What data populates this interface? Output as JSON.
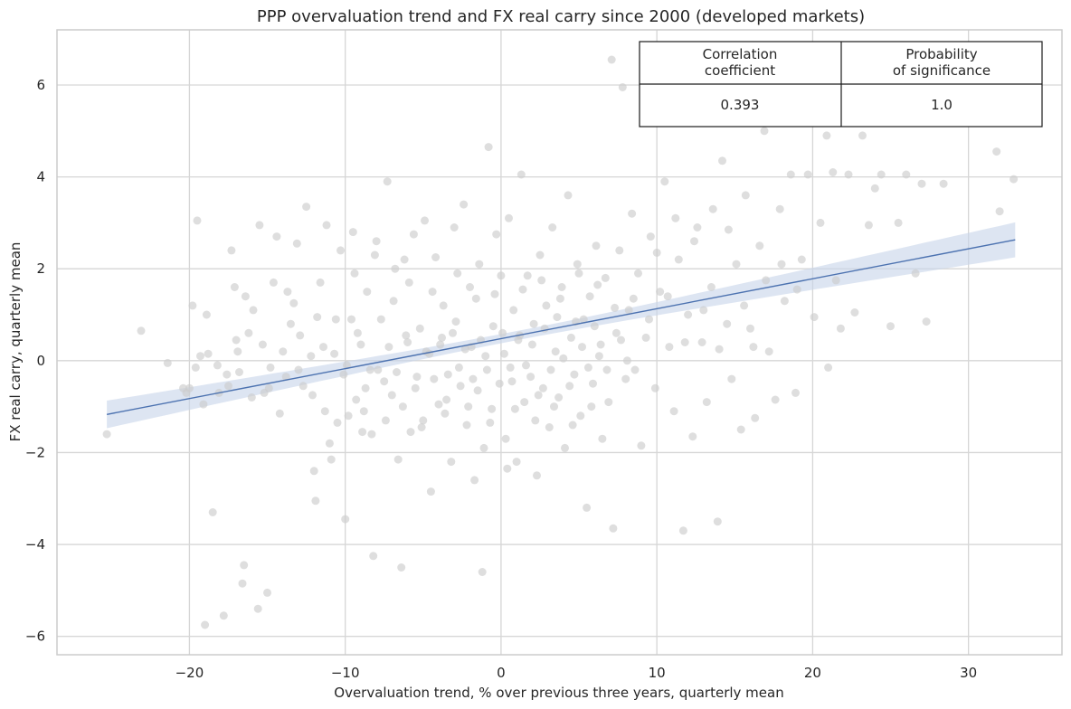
{
  "chart_data": {
    "type": "scatter",
    "title": "PPP overvaluation trend and FX real carry since 2000 (developed markets)",
    "xlabel": "Overvaluation trend, % over previous three years, quarterly mean",
    "ylabel": "FX real carry, quarterly mean",
    "xlim": [
      -28.5,
      36
    ],
    "ylim": [
      -6.4,
      7.2
    ],
    "xticks": [
      -20,
      -10,
      0,
      10,
      20,
      30
    ],
    "yticks": [
      -6,
      -4,
      -2,
      0,
      2,
      4,
      6
    ],
    "xtick_labels": [
      "−20",
      "−10",
      "0",
      "10",
      "20",
      "30"
    ],
    "ytick_labels": [
      "−6",
      "−4",
      "−2",
      "0",
      "2",
      "4",
      "6"
    ],
    "grid": true,
    "colors": {
      "points": "#cccccc",
      "line": "#4c72b0",
      "band": "#c6d3ea",
      "grid": "#d6d6d6",
      "frame": "#cccccc"
    },
    "regression": {
      "x": [
        -25.3,
        33.0
      ],
      "y": [
        -1.17,
        2.63
      ],
      "ci_halfwidth_ends": [
        0.3,
        0.38
      ],
      "ci_halfwidth_center": 0.1,
      "center_x": 1.0
    },
    "points": [
      [
        -25.3,
        -1.6
      ],
      [
        -23.1,
        0.65
      ],
      [
        -21.4,
        -0.05
      ],
      [
        -20.2,
        -0.7
      ],
      [
        -20.0,
        -0.6
      ],
      [
        -19.8,
        1.2
      ],
      [
        -19.5,
        3.05
      ],
      [
        -19.3,
        0.1
      ],
      [
        -19.1,
        -0.95
      ],
      [
        -19.0,
        -5.75
      ],
      [
        -18.8,
        0.15
      ],
      [
        -18.5,
        -3.3
      ],
      [
        -18.2,
        -0.1
      ],
      [
        -17.8,
        -5.55
      ],
      [
        -17.5,
        -0.55
      ],
      [
        -17.3,
        2.4
      ],
      [
        -17.1,
        1.6
      ],
      [
        -16.8,
        -0.25
      ],
      [
        -16.5,
        -4.45
      ],
      [
        -16.6,
        -4.85
      ],
      [
        -16.2,
        0.6
      ],
      [
        -16.0,
        -0.8
      ],
      [
        -15.6,
        -5.4
      ],
      [
        -15.5,
        2.95
      ],
      [
        -15.2,
        -0.7
      ],
      [
        -15.0,
        -5.05
      ],
      [
        -14.8,
        -0.15
      ],
      [
        -14.6,
        1.7
      ],
      [
        -14.4,
        2.7
      ],
      [
        -14.2,
        -1.15
      ],
      [
        -14.0,
        0.2
      ],
      [
        -13.7,
        1.5
      ],
      [
        -13.5,
        0.8
      ],
      [
        -13.1,
        2.55
      ],
      [
        -13.0,
        -0.2
      ],
      [
        -12.7,
        -0.55
      ],
      [
        -12.5,
        3.35
      ],
      [
        -12.2,
        0.1
      ],
      [
        -12.0,
        -2.4
      ],
      [
        -11.9,
        -3.05
      ],
      [
        -11.6,
        1.7
      ],
      [
        -11.3,
        -1.1
      ],
      [
        -11.2,
        2.95
      ],
      [
        -11.0,
        -1.8
      ],
      [
        -10.9,
        -2.15
      ],
      [
        -10.7,
        0.15
      ],
      [
        -10.5,
        -1.35
      ],
      [
        -10.3,
        2.4
      ],
      [
        -10.1,
        -0.3
      ],
      [
        -10.0,
        -3.45
      ],
      [
        -9.8,
        -1.2
      ],
      [
        -9.6,
        0.9
      ],
      [
        -9.5,
        2.8
      ],
      [
        -9.3,
        -0.85
      ],
      [
        -9.0,
        0.35
      ],
      [
        -8.8,
        -1.1
      ],
      [
        -8.6,
        1.5
      ],
      [
        -8.4,
        -0.2
      ],
      [
        -8.3,
        -1.6
      ],
      [
        -8.2,
        -4.25
      ],
      [
        -8.0,
        2.6
      ],
      [
        -7.7,
        0.9
      ],
      [
        -7.5,
        -0.45
      ],
      [
        -7.3,
        3.9
      ],
      [
        -7.0,
        -0.75
      ],
      [
        -6.9,
        1.3
      ],
      [
        -6.6,
        -2.15
      ],
      [
        -6.4,
        -4.5
      ],
      [
        -6.2,
        2.2
      ],
      [
        -6.0,
        0.4
      ],
      [
        -5.8,
        -1.55
      ],
      [
        -5.6,
        2.75
      ],
      [
        -5.4,
        -0.35
      ],
      [
        -5.2,
        0.7
      ],
      [
        -5.0,
        -1.3
      ],
      [
        -4.9,
        3.05
      ],
      [
        -4.6,
        0.15
      ],
      [
        -4.5,
        -2.85
      ],
      [
        -4.2,
        2.25
      ],
      [
        -4.0,
        -0.95
      ],
      [
        -3.8,
        0.5
      ],
      [
        -3.7,
        1.2
      ],
      [
        -3.4,
        -0.3
      ],
      [
        -3.2,
        -2.2
      ],
      [
        -3.0,
        2.9
      ],
      [
        -2.9,
        0.85
      ],
      [
        -2.6,
        -0.55
      ],
      [
        -2.4,
        3.4
      ],
      [
        -2.2,
        -1.4
      ],
      [
        -2.0,
        1.6
      ],
      [
        -1.9,
        0.3
      ],
      [
        -1.7,
        -2.6
      ],
      [
        -1.5,
        -0.65
      ],
      [
        -1.4,
        2.1
      ],
      [
        -1.2,
        -4.6
      ],
      [
        -1.0,
        0.1
      ],
      [
        -0.8,
        4.65
      ],
      [
        -0.6,
        -1.05
      ],
      [
        -0.4,
        1.45
      ],
      [
        -0.3,
        2.75
      ],
      [
        -0.1,
        -0.5
      ],
      [
        0.1,
        0.6
      ],
      [
        0.3,
        -1.7
      ],
      [
        0.5,
        3.1
      ],
      [
        0.6,
        -0.15
      ],
      [
        0.8,
        1.1
      ],
      [
        1.0,
        -2.2
      ],
      [
        1.1,
        0.45
      ],
      [
        1.3,
        4.05
      ],
      [
        1.5,
        -0.9
      ],
      [
        1.7,
        1.85
      ],
      [
        1.9,
        -0.35
      ],
      [
        2.1,
        0.8
      ],
      [
        2.3,
        -2.5
      ],
      [
        2.5,
        2.3
      ],
      [
        2.7,
        -0.6
      ],
      [
        2.9,
        1.2
      ],
      [
        3.1,
        -1.45
      ],
      [
        3.3,
        2.9
      ],
      [
        3.5,
        0.2
      ],
      [
        3.7,
        -0.8
      ],
      [
        3.9,
        1.6
      ],
      [
        4.1,
        -1.9
      ],
      [
        4.3,
        3.6
      ],
      [
        4.5,
        0.5
      ],
      [
        4.7,
        -0.3
      ],
      [
        4.9,
        2.1
      ],
      [
        5.1,
        -1.2
      ],
      [
        5.3,
        0.9
      ],
      [
        5.5,
        -3.2
      ],
      [
        5.7,
        1.4
      ],
      [
        5.9,
        -0.5
      ],
      [
        6.1,
        2.5
      ],
      [
        6.3,
        0.1
      ],
      [
        6.5,
        -1.7
      ],
      [
        6.7,
        1.8
      ],
      [
        6.9,
        -0.9
      ],
      [
        7.1,
        6.55
      ],
      [
        7.2,
        -3.65
      ],
      [
        7.4,
        0.6
      ],
      [
        7.6,
        2.4
      ],
      [
        7.8,
        5.95
      ],
      [
        8.0,
        -0.4
      ],
      [
        8.2,
        1.1
      ],
      [
        8.4,
        3.2
      ],
      [
        8.6,
        -0.2
      ],
      [
        8.8,
        1.9
      ],
      [
        9.0,
        -1.85
      ],
      [
        9.3,
        0.5
      ],
      [
        9.6,
        2.7
      ],
      [
        9.9,
        -0.6
      ],
      [
        10.2,
        1.5
      ],
      [
        10.5,
        3.9
      ],
      [
        10.8,
        0.3
      ],
      [
        11.1,
        -1.1
      ],
      [
        11.4,
        2.2
      ],
      [
        11.7,
        -3.7
      ],
      [
        12.0,
        1.0
      ],
      [
        12.3,
        -1.65
      ],
      [
        12.6,
        2.9
      ],
      [
        12.9,
        0.4
      ],
      [
        13.2,
        -0.9
      ],
      [
        13.5,
        1.6
      ],
      [
        13.9,
        -3.5
      ],
      [
        14.2,
        4.35
      ],
      [
        14.5,
        0.8
      ],
      [
        14.8,
        -0.4
      ],
      [
        15.1,
        2.1
      ],
      [
        15.4,
        -1.5
      ],
      [
        15.7,
        3.6
      ],
      [
        16.0,
        0.7
      ],
      [
        16.3,
        -1.25
      ],
      [
        16.6,
        2.5
      ],
      [
        16.9,
        5.0
      ],
      [
        17.2,
        0.2
      ],
      [
        17.6,
        -0.85
      ],
      [
        17.9,
        3.3
      ],
      [
        18.2,
        1.3
      ],
      [
        18.6,
        4.05
      ],
      [
        18.9,
        -0.7
      ],
      [
        19.3,
        2.2
      ],
      [
        19.7,
        4.05
      ],
      [
        20.1,
        0.95
      ],
      [
        20.5,
        3.0
      ],
      [
        20.9,
        4.9
      ],
      [
        21.0,
        -0.15
      ],
      [
        21.3,
        4.1
      ],
      [
        21.5,
        1.75
      ],
      [
        21.8,
        0.7
      ],
      [
        22.3,
        4.05
      ],
      [
        22.7,
        1.05
      ],
      [
        23.2,
        4.9
      ],
      [
        23.6,
        2.95
      ],
      [
        24.0,
        3.75
      ],
      [
        24.4,
        4.05
      ],
      [
        25.0,
        0.75
      ],
      [
        25.5,
        3.0
      ],
      [
        26.0,
        4.05
      ],
      [
        26.6,
        1.9
      ],
      [
        27.0,
        3.85
      ],
      [
        27.3,
        0.85
      ],
      [
        28.4,
        3.85
      ],
      [
        31.8,
        4.55
      ],
      [
        32.0,
        3.25
      ],
      [
        32.9,
        3.95
      ],
      [
        -18.9,
        1.0
      ],
      [
        -17.6,
        -0.3
      ],
      [
        -16.9,
        0.2
      ],
      [
        -15.9,
        1.1
      ],
      [
        -14.9,
        -0.6
      ],
      [
        -13.8,
        -0.35
      ],
      [
        -12.9,
        0.55
      ],
      [
        -12.1,
        -0.75
      ],
      [
        -11.4,
        0.3
      ],
      [
        -10.6,
        0.9
      ],
      [
        -9.9,
        -0.1
      ],
      [
        -9.2,
        0.6
      ],
      [
        -8.7,
        -0.6
      ],
      [
        -7.9,
        -0.2
      ],
      [
        -7.2,
        0.3
      ],
      [
        -6.7,
        -0.25
      ],
      [
        -6.1,
        0.55
      ],
      [
        -5.5,
        -0.6
      ],
      [
        -4.8,
        0.2
      ],
      [
        -4.3,
        -0.4
      ],
      [
        -3.9,
        0.35
      ],
      [
        -3.5,
        -0.85
      ],
      [
        -3.1,
        0.6
      ],
      [
        -2.7,
        -0.15
      ],
      [
        -2.3,
        0.25
      ],
      [
        -1.8,
        -0.4
      ],
      [
        -1.3,
        0.45
      ],
      [
        -0.9,
        -0.2
      ],
      [
        -0.5,
        0.75
      ],
      [
        0.2,
        0.15
      ],
      [
        0.7,
        -0.45
      ],
      [
        1.2,
        0.55
      ],
      [
        1.6,
        -0.1
      ],
      [
        2.0,
        0.35
      ],
      [
        2.4,
        -0.75
      ],
      [
        2.8,
        0.7
      ],
      [
        3.2,
        -0.2
      ],
      [
        3.6,
        0.95
      ],
      [
        4.0,
        0.05
      ],
      [
        4.4,
        -0.55
      ],
      [
        4.8,
        0.85
      ],
      [
        5.2,
        0.3
      ],
      [
        5.6,
        -0.15
      ],
      [
        6.0,
        0.75
      ],
      [
        6.4,
        0.35
      ],
      [
        6.8,
        -0.2
      ],
      [
        7.3,
        1.15
      ],
      [
        7.7,
        0.45
      ],
      [
        8.1,
        0.0
      ],
      [
        8.5,
        1.35
      ],
      [
        -5.9,
        1.7
      ],
      [
        -4.4,
        1.5
      ],
      [
        -2.8,
        1.9
      ],
      [
        -1.6,
        1.35
      ],
      [
        0.0,
        1.85
      ],
      [
        1.4,
        1.55
      ],
      [
        2.6,
        1.75
      ],
      [
        3.8,
        1.35
      ],
      [
        5.0,
        1.9
      ],
      [
        6.2,
        1.65
      ],
      [
        -6.3,
        -1.0
      ],
      [
        -5.1,
        -1.45
      ],
      [
        -3.6,
        -1.15
      ],
      [
        -2.1,
        -1.0
      ],
      [
        -0.7,
        -1.35
      ],
      [
        0.9,
        -1.05
      ],
      [
        2.2,
        -1.3
      ],
      [
        3.4,
        -1.0
      ],
      [
        4.6,
        -1.4
      ],
      [
        5.8,
        -1.0
      ],
      [
        -9.4,
        1.9
      ],
      [
        -8.1,
        2.3
      ],
      [
        -6.8,
        2.0
      ],
      [
        -7.4,
        -1.3
      ],
      [
        -8.9,
        -1.55
      ],
      [
        9.5,
        0.9
      ],
      [
        10.7,
        1.4
      ],
      [
        11.8,
        0.4
      ],
      [
        13.0,
        1.1
      ],
      [
        14.0,
        0.25
      ],
      [
        -11.8,
        0.95
      ],
      [
        -13.3,
        1.25
      ],
      [
        -15.3,
        0.35
      ],
      [
        -16.4,
        1.4
      ],
      [
        -17.0,
        0.45
      ],
      [
        -18.1,
        -0.7
      ],
      [
        -19.6,
        -0.15
      ],
      [
        -20.4,
        -0.6
      ],
      [
        15.6,
        1.2
      ],
      [
        17.0,
        1.75
      ],
      [
        18.0,
        2.1
      ],
      [
        19.0,
        1.55
      ],
      [
        16.2,
        0.3
      ],
      [
        10.0,
        2.35
      ],
      [
        11.2,
        3.1
      ],
      [
        12.4,
        2.6
      ],
      [
        13.6,
        3.3
      ],
      [
        14.6,
        2.85
      ],
      [
        -1.1,
        -1.9
      ],
      [
        0.4,
        -2.35
      ]
    ]
  }
}
